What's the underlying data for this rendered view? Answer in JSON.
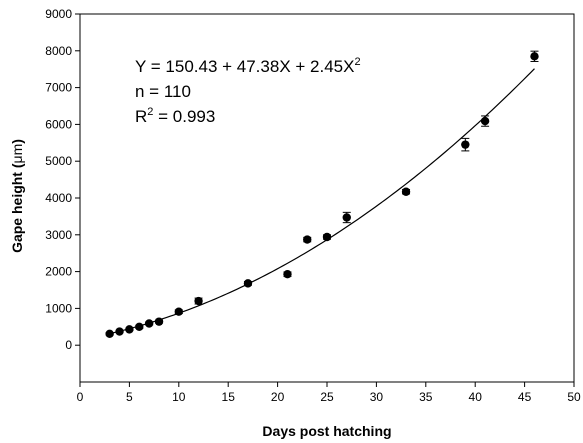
{
  "chart_data": {
    "type": "scatter",
    "xlabel": "Days post hatching",
    "ylabel_prefix": "Gape height (",
    "ylabel_unit": "μm",
    "ylabel_suffix": ")",
    "xlim": [
      0,
      50
    ],
    "ylim": [
      -1000,
      9000
    ],
    "xticks": [
      0,
      5,
      10,
      15,
      20,
      25,
      30,
      35,
      40,
      45,
      50
    ],
    "yticks": [
      0,
      1000,
      2000,
      3000,
      4000,
      5000,
      6000,
      7000,
      8000,
      9000
    ],
    "grid": false,
    "points": [
      {
        "x": 3,
        "y": 310,
        "err": 30
      },
      {
        "x": 4,
        "y": 370,
        "err": 30
      },
      {
        "x": 5,
        "y": 430,
        "err": 30
      },
      {
        "x": 6,
        "y": 500,
        "err": 40
      },
      {
        "x": 7,
        "y": 590,
        "err": 40
      },
      {
        "x": 8,
        "y": 640,
        "err": 40
      },
      {
        "x": 10,
        "y": 910,
        "err": 50
      },
      {
        "x": 12,
        "y": 1200,
        "err": 80
      },
      {
        "x": 17,
        "y": 1680,
        "err": 50
      },
      {
        "x": 21,
        "y": 1930,
        "err": 60
      },
      {
        "x": 23,
        "y": 2870,
        "err": 60
      },
      {
        "x": 25,
        "y": 2940,
        "err": 60
      },
      {
        "x": 27,
        "y": 3470,
        "err": 140
      },
      {
        "x": 33,
        "y": 4170,
        "err": 60
      },
      {
        "x": 39,
        "y": 5450,
        "err": 170
      },
      {
        "x": 41,
        "y": 6090,
        "err": 140
      },
      {
        "x": 46,
        "y": 7850,
        "err": 140
      }
    ],
    "fit": {
      "a": 150.43,
      "b": 47.38,
      "c": 2.45,
      "x_range": [
        3,
        46
      ]
    },
    "annotation": {
      "eq_main": "Y = 150.43 + 47.38X + 2.45X",
      "eq_sup": "2",
      "n_line": "n = 110",
      "r2_prefix": "R",
      "r2_sup": "2",
      "r2_value": " = 0.993"
    }
  }
}
